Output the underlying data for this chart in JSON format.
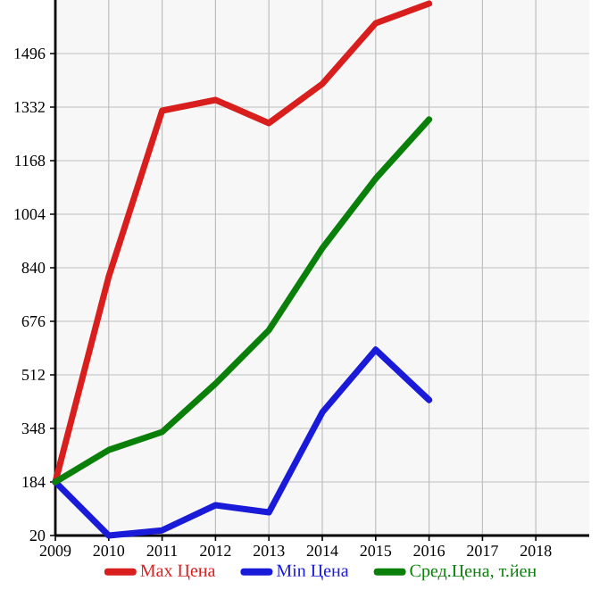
{
  "chart_data": {
    "type": "line",
    "x": [
      2009,
      2010,
      2011,
      2012,
      2013,
      2014,
      2015,
      2016
    ],
    "series": [
      {
        "name": "Max Цена",
        "color": "#d91e1e",
        "values": [
          184,
          813,
          1321,
          1354,
          1283,
          1403,
          1589,
          1649
        ]
      },
      {
        "name": "Min Цена",
        "color": "#1a1ad9",
        "values": [
          184,
          20,
          36,
          113,
          91,
          397,
          589,
          435
        ]
      },
      {
        "name": "Сред.Цена, т.йен",
        "color": "#0a800a",
        "values": [
          184,
          282,
          337,
          485,
          649,
          900,
          1113,
          1294
        ]
      }
    ],
    "xlim": [
      2009,
      2019
    ],
    "xticks": [
      2009,
      2010,
      2011,
      2012,
      2013,
      2014,
      2015,
      2016,
      2017,
      2018
    ],
    "ylim": [
      20,
      1660
    ],
    "yticks": [
      20,
      184,
      348,
      512,
      676,
      840,
      1004,
      1168,
      1332,
      1496
    ],
    "grid": true,
    "legend": "bottom",
    "marker": "none",
    "line_style": "solid"
  }
}
